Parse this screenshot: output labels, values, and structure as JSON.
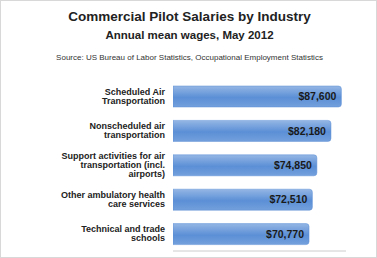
{
  "chart_data": {
    "type": "bar",
    "title": "Commercial Pilot Salaries by Industry",
    "subtitle": "Annual mean wages, May 2012",
    "annotations": [
      "Source: US Bureau of Labor Statistics, Occupational Employment Statistics"
    ],
    "orientation": "horizontal",
    "categories": [
      "Scheduled Air Transportation",
      "Nonscheduled air transportation",
      "Support activities for air transportation (incl. airports)",
      "Other ambulatory health care services",
      "Technical and trade schools"
    ],
    "values": [
      87600,
      82180,
      74850,
      72510,
      70770
    ],
    "value_labels": [
      "$87,600",
      "$82,180",
      "$74,850",
      "$72,510",
      "$70,770"
    ],
    "data_labels": true,
    "color": "#5b8fd6",
    "xlim": [
      0,
      90000
    ],
    "tick_labels": "y",
    "grid": false
  }
}
